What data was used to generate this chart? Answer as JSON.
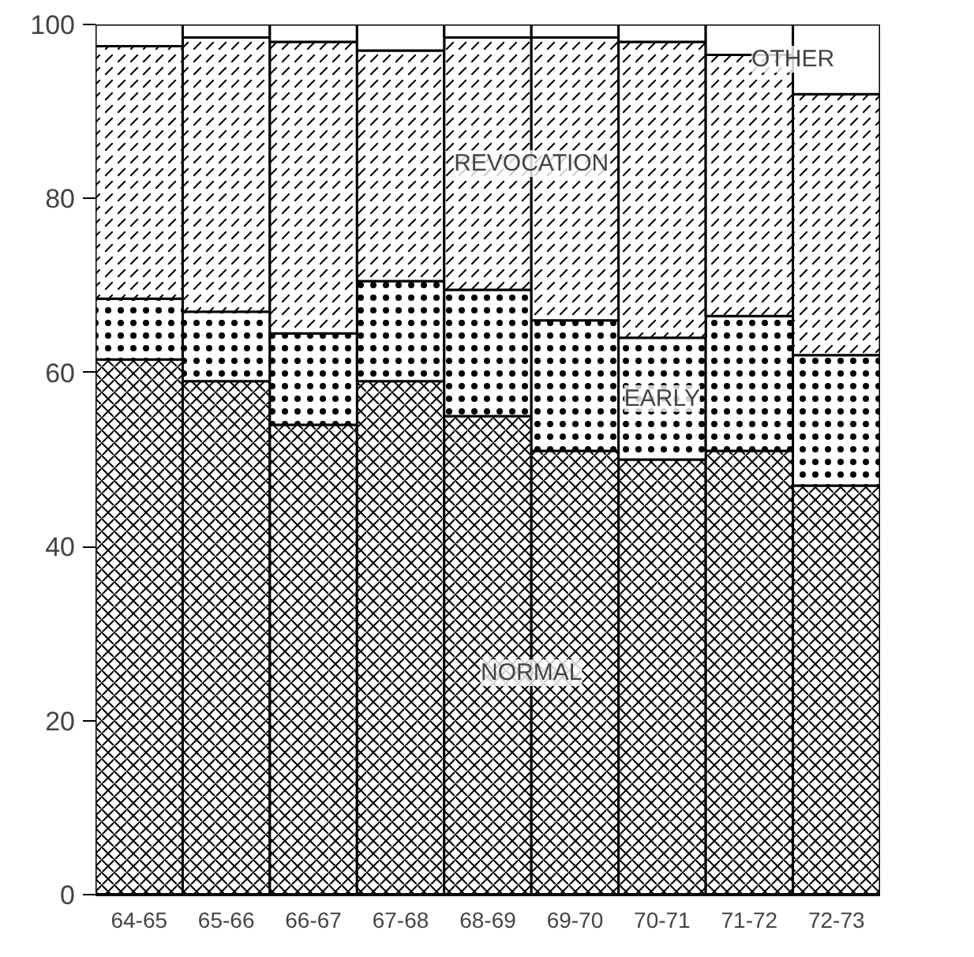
{
  "chart_data": {
    "type": "bar",
    "stacked": true,
    "categories": [
      "64-65",
      "65-66",
      "66-67",
      "67-68",
      "68-69",
      "69-70",
      "70-71",
      "71-72",
      "72-73"
    ],
    "series": [
      {
        "name": "NORMAL",
        "color": "#000000",
        "values": [
          61.5,
          59,
          54,
          59,
          55,
          51,
          50,
          51,
          47
        ]
      },
      {
        "name": "EARLY",
        "color": "#000000",
        "values": [
          7,
          8,
          10.5,
          11.5,
          14.5,
          15,
          14,
          15.5,
          15
        ]
      },
      {
        "name": "REVOCATION",
        "color": "#000000",
        "values": [
          29,
          31.5,
          33.5,
          26.5,
          29,
          32.5,
          34,
          30,
          30
        ]
      },
      {
        "name": "OTHER",
        "color": "#000000",
        "values": [
          2.5,
          1.5,
          2,
          3,
          1.5,
          1.5,
          2,
          3.5,
          8
        ]
      }
    ],
    "ylim": [
      0,
      100
    ],
    "yticks": [
      0,
      20,
      40,
      60,
      80,
      100
    ]
  }
}
